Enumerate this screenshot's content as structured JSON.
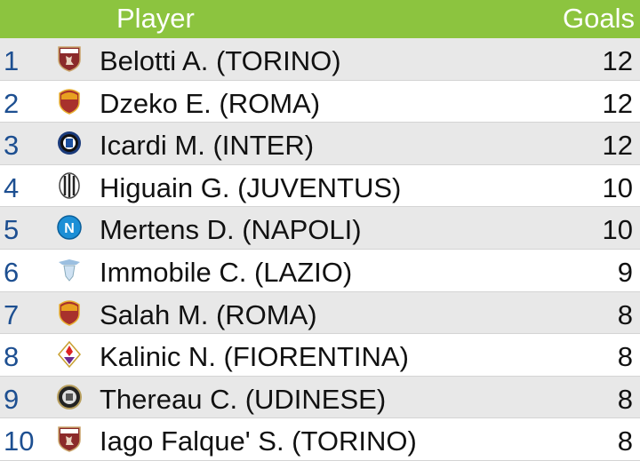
{
  "header": {
    "player": "Player",
    "goals": "Goals"
  },
  "colors": {
    "header": "#8cc43f",
    "rank": "#1d4f91"
  },
  "rows": [
    {
      "rank": "1",
      "name": "Belotti A. (TORINO)",
      "goals": "12",
      "crest": "torino-crest-icon"
    },
    {
      "rank": "2",
      "name": "Dzeko E. (ROMA)",
      "goals": "12",
      "crest": "roma-crest-icon"
    },
    {
      "rank": "3",
      "name": "Icardi M. (INTER)",
      "goals": "12",
      "crest": "inter-crest-icon"
    },
    {
      "rank": "4",
      "name": "Higuain G. (JUVENTUS)",
      "goals": "10",
      "crest": "juventus-crest-icon"
    },
    {
      "rank": "5",
      "name": "Mertens D. (NAPOLI)",
      "goals": "10",
      "crest": "napoli-crest-icon"
    },
    {
      "rank": "6",
      "name": "Immobile C. (LAZIO)",
      "goals": "9",
      "crest": "lazio-crest-icon"
    },
    {
      "rank": "7",
      "name": "Salah M. (ROMA)",
      "goals": "8",
      "crest": "roma-crest-icon"
    },
    {
      "rank": "8",
      "name": "Kalinic N. (FIORENTINA)",
      "goals": "8",
      "crest": "fiorentina-crest-icon"
    },
    {
      "rank": "9",
      "name": "Thereau C. (UDINESE)",
      "goals": "8",
      "crest": "udinese-crest-icon"
    },
    {
      "rank": "10",
      "name": "Iago Falque' S. (TORINO)",
      "goals": "8",
      "crest": "torino-crest-icon"
    }
  ]
}
